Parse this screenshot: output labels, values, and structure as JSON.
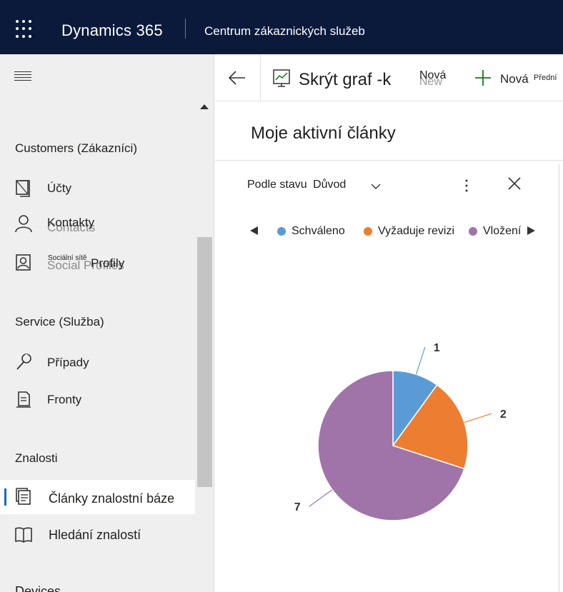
{
  "header": {
    "app_title": "Dynamics 365",
    "app_subtitle": "Centrum zákaznických služeb"
  },
  "sidebar": {
    "groups": {
      "customers": "Customers (Zákazníci)",
      "service": "Service (Služba)",
      "knowledge": "Znalosti",
      "devices": "Devices"
    },
    "items": {
      "accounts": "Účty",
      "contacts": "Kontakty",
      "contacts_ghost": "Contacts",
      "social_tiny": "Sociální sítě",
      "social_profiles": "Profily",
      "social_ghost": "Social Profiles",
      "cases": "Případy",
      "queues": "Fronty",
      "kb_articles": "Články znalostní báze",
      "knowledge_search": "Hledání znalostí"
    }
  },
  "commandbar": {
    "hide_chart": "Skrýt graf -k",
    "new_small": "Nová",
    "new_ghost": "New",
    "new_button": "Nová",
    "front": "Přední"
  },
  "view": {
    "title": "Moje aktivní články"
  },
  "chart_panel": {
    "selector_label": "Podle stavu",
    "selector_value": "Důvod"
  },
  "colors": {
    "topbar": "#0b1a3b",
    "accent": "#0f6cbd",
    "slice_approved": "#5b9bd5",
    "slice_review": "#ed7d31",
    "slice_inserted": "#a074a8"
  },
  "icons": {
    "waffle": "waffle-icon",
    "back": "back-arrow-icon",
    "chart": "chart-icon",
    "plus": "plus-icon",
    "chevron": "chevron-down-icon",
    "more": "more-vertical-icon",
    "close": "close-icon"
  },
  "chart_data": {
    "type": "pie",
    "categories": [
      "Schváleno",
      "Vyžaduje revizi",
      "Vložení"
    ],
    "values": [
      1,
      2,
      7
    ],
    "colors": [
      "#5b9bd5",
      "#ed7d31",
      "#a074a8"
    ],
    "legend": "top"
  }
}
